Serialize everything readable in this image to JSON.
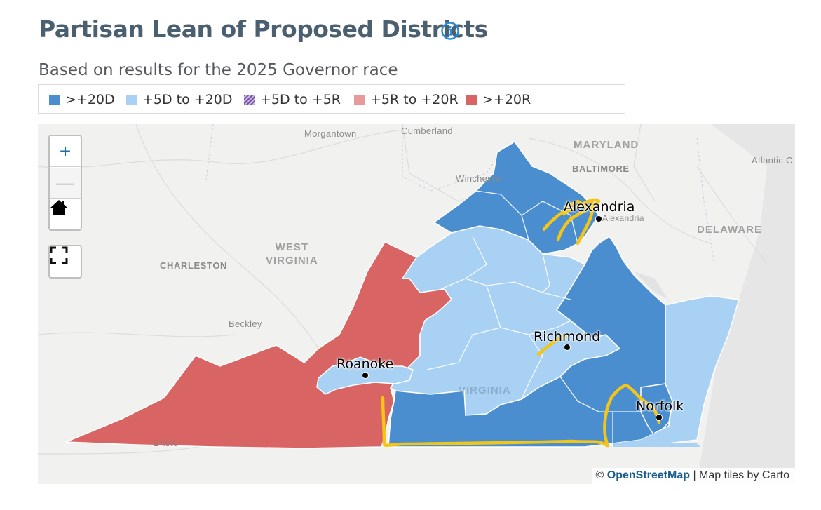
{
  "header": {
    "title": "Partisan Lean of Proposed Districts",
    "subtitle": "Based on results for the 2025 Governor race"
  },
  "legend": [
    {
      "label": ">+20D",
      "color": "#4a8ed0"
    },
    {
      "label": "+5D to +20D",
      "color": "#a9d1f3"
    },
    {
      "label": "+5D to +5R",
      "color": "#8f6cb4"
    },
    {
      "label": "+5R to +20R",
      "color": "#e89a9a"
    },
    {
      "label": ">+20R",
      "color": "#d96464"
    }
  ],
  "map_controls": {
    "zoom_in": "+",
    "zoom_out": "—",
    "home_icon": "home-icon",
    "fullscreen_icon": "fullscreen-icon"
  },
  "cities": {
    "alexandria": "Alexandria",
    "richmond": "Richmond",
    "roanoke": "Roanoke",
    "norfolk": "Norfolk"
  },
  "basemap_labels": {
    "morgantown": "Morgantown",
    "cumberland": "Cumberland",
    "maryland": "MARYLAND",
    "baltimore": "BALTIMORE",
    "atlantic": "Atlantic C",
    "winchester": "Winchester",
    "delaware": "DELAWARE",
    "west_virginia": "WEST\nVIRGINIA",
    "charleston": "CHARLESTON",
    "beckley": "Beckley",
    "alexandria_small": "Alexandria",
    "virginia": "VIRGINIA",
    "bristol": "Bristol"
  },
  "attribution": {
    "prefix": "©",
    "osm": "OpenStreetMap",
    "suffix": "| Map tiles by Carto"
  }
}
